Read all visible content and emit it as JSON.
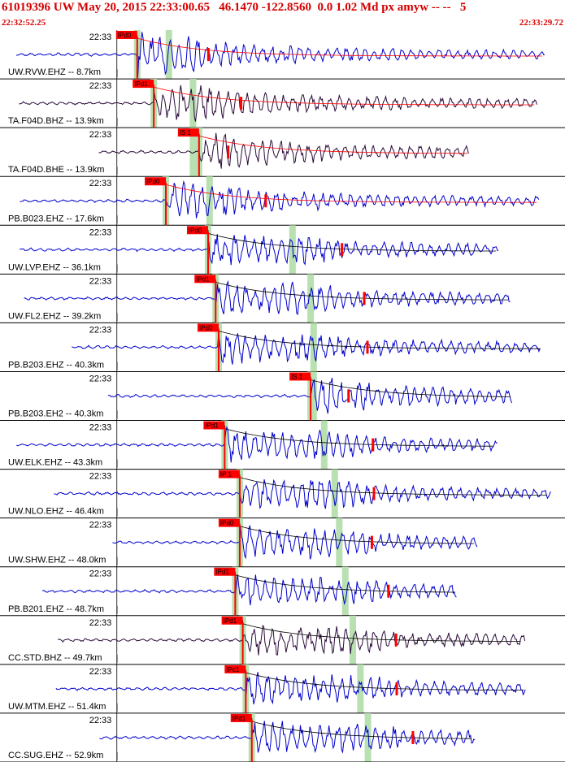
{
  "header": {
    "title": "61019396 UW May 20, 2015 22:33:00.65   46.1470 -122.8560  0.0 1.02 Md px amyw -- --   5",
    "time_start": "22:32:52.25",
    "time_end": "22:33:29.72"
  },
  "chart_data": {
    "type": "seismogram",
    "time_window": [
      "22:32:52.25",
      "22:33:29.72"
    ],
    "minute_tick_label": "22:33",
    "colors": {
      "waveform": "#0000cc",
      "waveform_broadband": "#2a0a3a",
      "pick": "#ff0000",
      "coda": "#000000",
      "window": "#b8e0b0"
    },
    "traces": [
      {
        "label": "UW.RVW.EHZ -- 8.7km",
        "pick": "IPd0",
        "pick_time_s": 9.1,
        "s_time_s": 11.2,
        "color": "blue"
      },
      {
        "label": "TA.F04D.BHZ -- 13.9km",
        "pick": "IPd1",
        "pick_time_s": 10.2,
        "s_time_s": 12.8,
        "color": "broadband"
      },
      {
        "label": "TA.F04D.BHE -- 13.9km",
        "pick": "IS 1",
        "pick_time_s": 13.2,
        "s_time_s": 12.8,
        "color": "broadband"
      },
      {
        "label": "PB.B023.EHZ -- 17.6km",
        "pick": "IPd0",
        "pick_time_s": 11.0,
        "s_time_s": 13.9,
        "color": "blue"
      },
      {
        "label": "UW.LVP.EHZ -- 36.1km",
        "pick": "IPd0",
        "pick_time_s": 13.8,
        "s_time_s": 19.4,
        "color": "blue"
      },
      {
        "label": "UW.FL2.EHZ -- 39.2km",
        "pick": "IPd1",
        "pick_time_s": 14.3,
        "s_time_s": 20.6,
        "color": "blue"
      },
      {
        "label": "PB.B203.EHZ -- 40.3km",
        "pick": "IPd0",
        "pick_time_s": 14.5,
        "s_time_s": 20.8,
        "color": "blue"
      },
      {
        "label": "PB.B203.EH2 -- 40.3km",
        "pick": "IS 1",
        "pick_time_s": 20.6,
        "s_time_s": 20.8,
        "color": "blue"
      },
      {
        "label": "UW.ELK.EHZ -- 43.3km",
        "pick": "IPd1",
        "pick_time_s": 14.9,
        "s_time_s": 21.5,
        "color": "blue"
      },
      {
        "label": "UW.NLO.EHZ -- 46.4km",
        "pick": "IP 1",
        "pick_time_s": 15.9,
        "s_time_s": 22.2,
        "color": "blue"
      },
      {
        "label": "UW.SHW.EHZ -- 48.0km",
        "pick": "IPd0",
        "pick_time_s": 15.9,
        "s_time_s": 22.5,
        "color": "blue"
      },
      {
        "label": "PB.B201.EHZ -- 48.7km",
        "pick": "IPd1",
        "pick_time_s": 15.6,
        "s_time_s": 22.9,
        "color": "blue"
      },
      {
        "label": "CC.STD.BHZ -- 49.7km",
        "pick": "IPd1",
        "pick_time_s": 16.1,
        "s_time_s": 23.4,
        "color": "broadband"
      },
      {
        "label": "UW.MTM.EHZ -- 51.4km",
        "pick": "IPc1",
        "pick_time_s": 16.3,
        "s_time_s": 23.9,
        "color": "blue"
      },
      {
        "label": "CC.SUG.EHZ -- 52.9km",
        "pick": "IPd1",
        "pick_time_s": 16.7,
        "s_time_s": 24.4,
        "color": "blue"
      }
    ]
  }
}
